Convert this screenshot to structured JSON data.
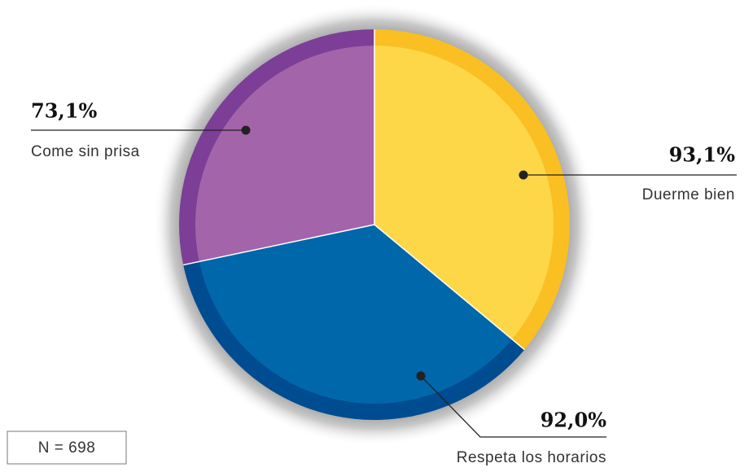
{
  "chart_data": {
    "type": "pie",
    "categories": [
      "Duerme bien",
      "Respeta los horarios",
      "Come sin prisa"
    ],
    "values": [
      93.1,
      92.0,
      73.1
    ],
    "value_labels": [
      "93,1%",
      "92,0%",
      "73,1%"
    ],
    "colors": [
      "#fdd748",
      "#0067aa",
      "#a464a9"
    ],
    "edge_colors": [
      "#fabf23",
      "#004c90",
      "#7c3e97"
    ],
    "note": "N = 698"
  }
}
